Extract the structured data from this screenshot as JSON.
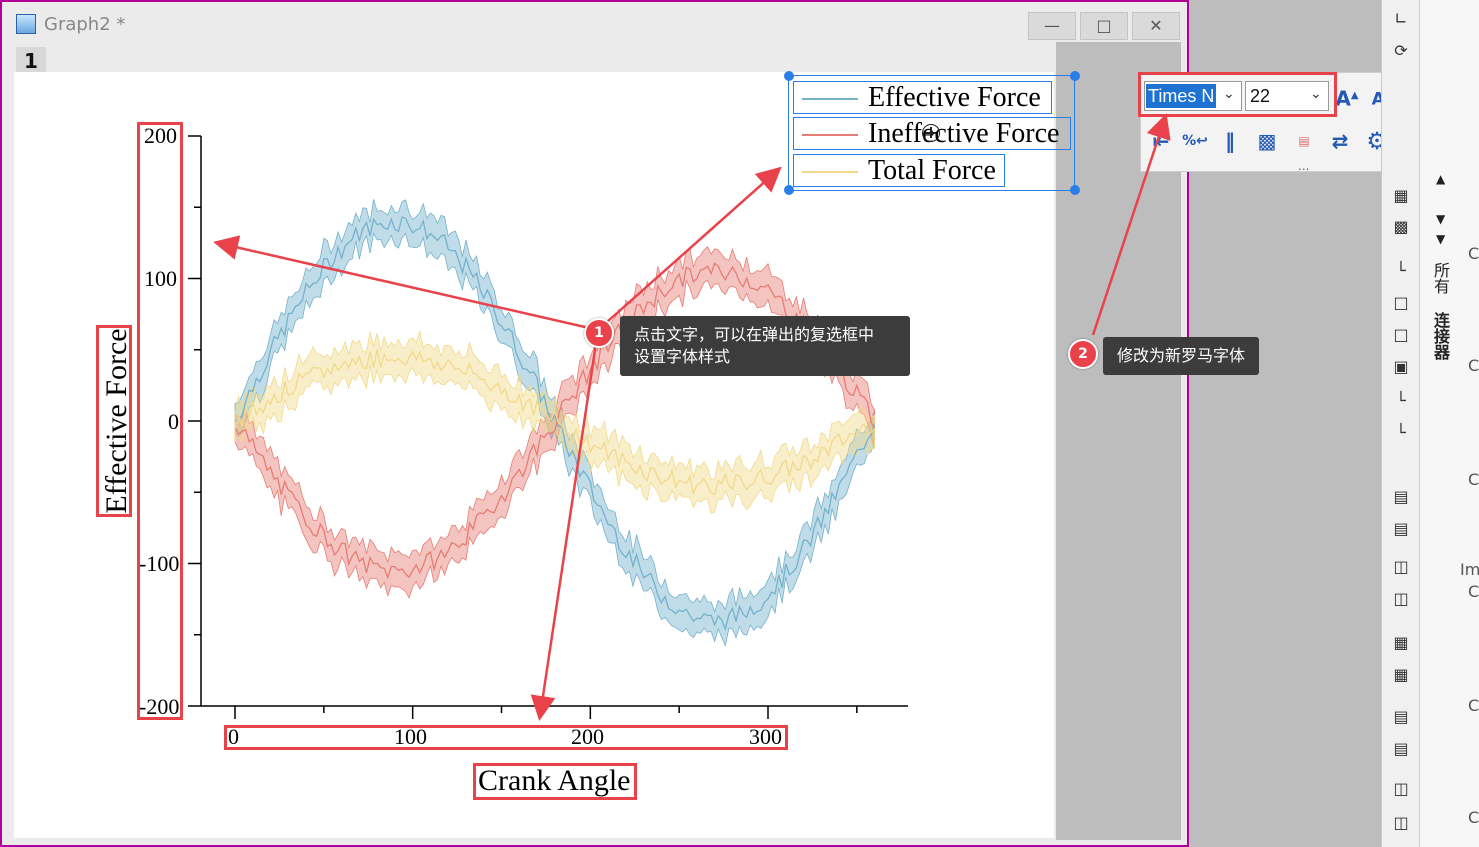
{
  "window": {
    "title": "Graph2 *",
    "layer": "1"
  },
  "chart_data": {
    "type": "line",
    "ylabel": "Effective Force",
    "xlabel": "Crank Angle",
    "xticks": [
      "0",
      "100",
      "200",
      "300"
    ],
    "yticks": [
      "200",
      "100",
      "0",
      "-100",
      "-200"
    ],
    "xlim": [
      -20,
      380
    ],
    "ylim": [
      -200,
      200
    ],
    "series": [
      {
        "name": "Effective Force",
        "color": "#74b2cc",
        "amplitude": 140,
        "phase": 0,
        "band": 12
      },
      {
        "name": "Ineffective Force",
        "color": "#e77c74",
        "amplitude": -105,
        "phase": 0,
        "band": 12
      },
      {
        "name": "Total Force",
        "color": "#f2d98a",
        "amplitude": 45,
        "phase": 0,
        "band": 12
      }
    ]
  },
  "callouts": [
    {
      "number": "1",
      "text_line1": "点击文字，可以在弹出的复选框中",
      "text_line2": "设置字体样式"
    },
    {
      "number": "2",
      "text_line1": "修改为新罗马字体"
    }
  ],
  "toolbar": {
    "font": "Times N",
    "size": "22",
    "more": "..."
  },
  "side_tabs": {
    "all": "所有",
    "connector": "连接器"
  },
  "side_letters": [
    "C",
    "C",
    "C",
    "Im",
    "C",
    "C",
    "C"
  ]
}
